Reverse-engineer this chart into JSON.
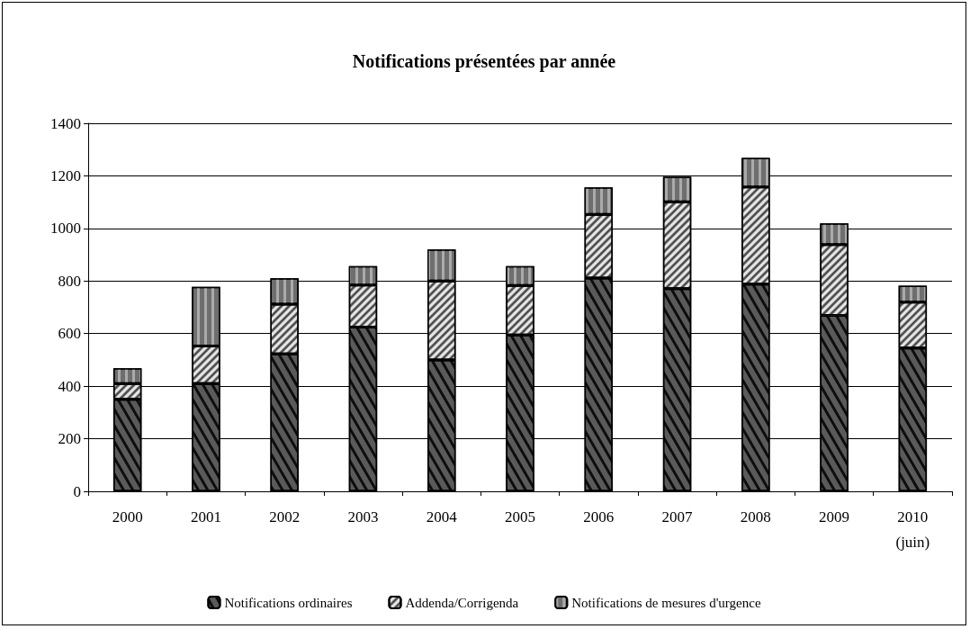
{
  "chart_data": {
    "type": "bar",
    "title": "Notifications présentées par année",
    "categories": [
      "2000",
      "2001",
      "2002",
      "2003",
      "2004",
      "2005",
      "2006",
      "2007",
      "2008",
      "2009",
      "2010\n(juin)"
    ],
    "stacked": true,
    "series": [
      {
        "name": "Notifications ordinaires",
        "color": "#5a5a5a",
        "values": [
          350,
          410,
          523,
          625,
          500,
          595,
          811,
          771,
          788,
          669,
          545
        ]
      },
      {
        "name": "Addenda/Corrigenda",
        "color": "#e6e6e6",
        "values": [
          60,
          143,
          189,
          160,
          300,
          188,
          242,
          330,
          370,
          270,
          175
        ]
      },
      {
        "name": "Notifications de mesures d'urgence",
        "color": "#6e6e6e",
        "values": [
          58,
          225,
          98,
          72,
          120,
          74,
          103,
          95,
          110,
          80,
          62
        ]
      }
    ],
    "ylim": [
      0,
      1400
    ],
    "yticks": [
      0,
      200,
      400,
      600,
      800,
      1000,
      1200,
      1400
    ],
    "grid": "y",
    "legend": "bottom"
  }
}
